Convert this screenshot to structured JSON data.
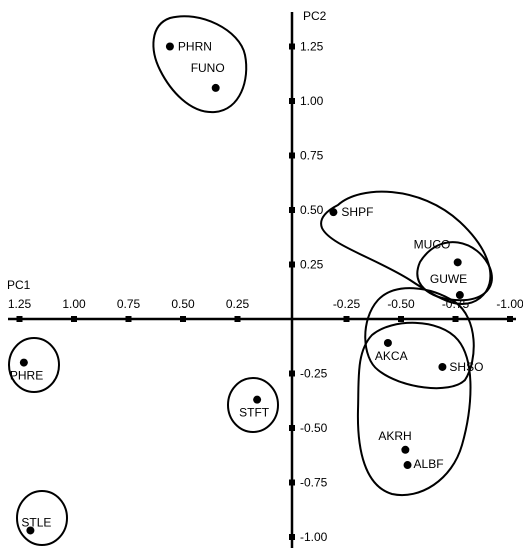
{
  "chart_data": {
    "type": "scatter",
    "title": "",
    "xlabel": "PC1",
    "ylabel": "PC2",
    "x_reversed": true,
    "xlim": [
      1.25,
      -1.0
    ],
    "ylim": [
      -1.0,
      1.3
    ],
    "x_ticks": [
      1.25,
      1.0,
      0.75,
      0.5,
      0.25,
      -0.25,
      -0.5,
      -0.75,
      -1.0
    ],
    "x_tick_labels": [
      "1.25",
      "1.00",
      "0.75",
      "0.50",
      "0.25",
      "-0.25",
      "-0.50",
      "-0.75",
      "-1.00"
    ],
    "y_ticks": [
      1.25,
      1.0,
      0.75,
      0.5,
      0.25,
      -0.25,
      -0.5,
      -0.75,
      -1.0
    ],
    "y_tick_labels": [
      "1.25",
      "1.00",
      "0.75",
      "0.50",
      "0.25",
      "-0.25",
      "-0.50",
      "-0.75",
      "-1.00"
    ],
    "grid": false,
    "points": [
      {
        "label": "PHRN",
        "x": 0.56,
        "y": 1.25
      },
      {
        "label": "FUNO",
        "x": 0.35,
        "y": 1.06
      },
      {
        "label": "SHPF",
        "x": -0.19,
        "y": 0.49
      },
      {
        "label": "MUCO",
        "x": -0.76,
        "y": 0.26
      },
      {
        "label": "GUWE",
        "x": -0.77,
        "y": 0.11
      },
      {
        "label": "PHRE",
        "x": 1.23,
        "y": -0.2
      },
      {
        "label": "AKCA",
        "x": -0.44,
        "y": -0.11
      },
      {
        "label": "SHSO",
        "x": -0.69,
        "y": -0.22
      },
      {
        "label": "STFT",
        "x": 0.16,
        "y": -0.37
      },
      {
        "label": "AKRH",
        "x": -0.52,
        "y": -0.6
      },
      {
        "label": "ALBF",
        "x": -0.53,
        "y": -0.67
      },
      {
        "label": "STLE",
        "x": 1.2,
        "y": -0.97
      }
    ]
  }
}
